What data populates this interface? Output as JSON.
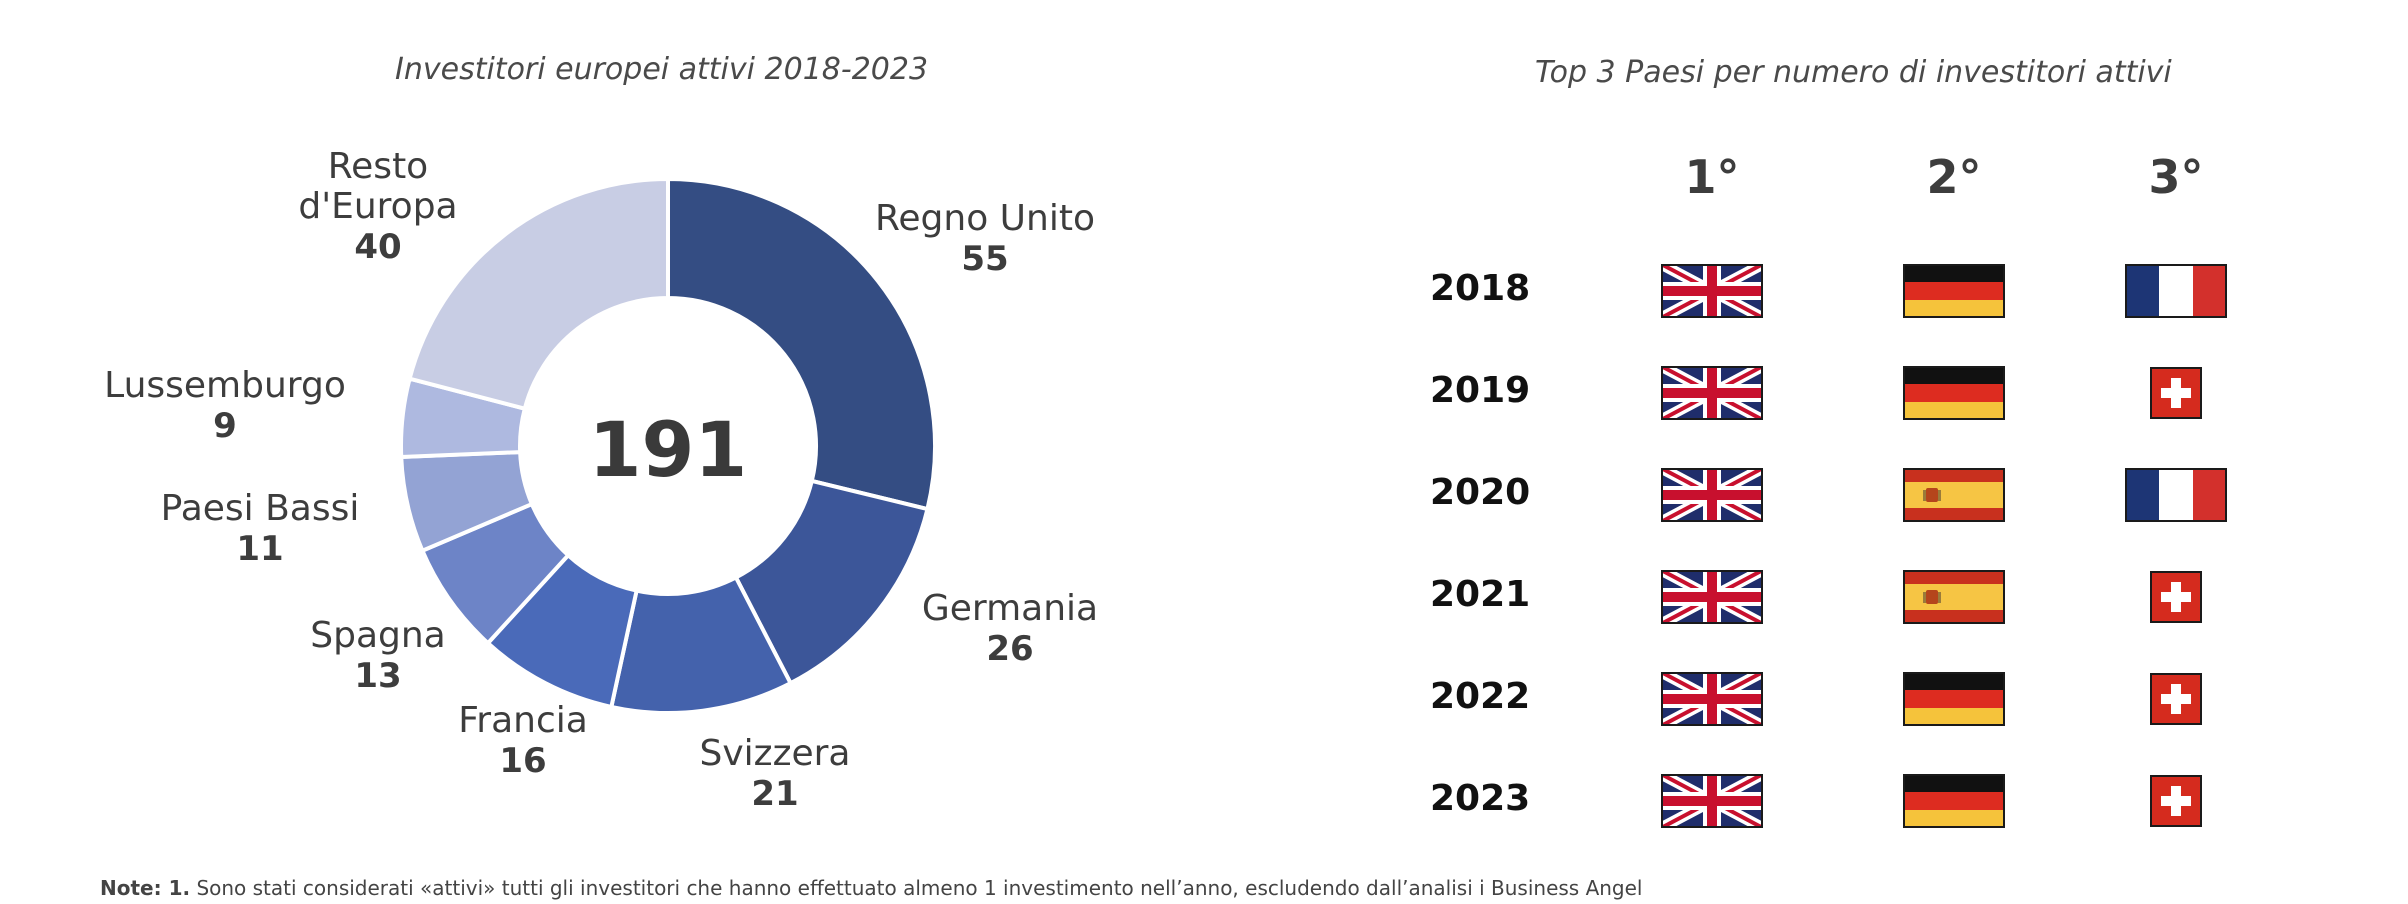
{
  "chart_data": {
    "type": "donut",
    "title": "Investitori europei attivi 2018-2023",
    "total": "191",
    "slices": [
      {
        "label": "Regno Unito",
        "value": 55,
        "color": "#344d83"
      },
      {
        "label": "Germania",
        "value": 26,
        "color": "#3c5699"
      },
      {
        "label": "Svizzera",
        "value": 21,
        "color": "#4462ac"
      },
      {
        "label": "Francia",
        "value": 16,
        "color": "#4a6ab9"
      },
      {
        "label": "Spagna",
        "value": 13,
        "color": "#6d84c7"
      },
      {
        "label": "Paesi Bassi",
        "value": 11,
        "color": "#93a3d4"
      },
      {
        "label": "Lussemburgo",
        "value": 9,
        "color": "#aeb9e0"
      },
      {
        "label": "Resto d'Europa",
        "value": 40,
        "color": "#c8cde4"
      }
    ]
  },
  "top3": {
    "title": "Top 3 Paesi per numero di investitori attivi",
    "headers": [
      "1°",
      "2°",
      "3°"
    ],
    "rows": [
      {
        "year": "2018",
        "flags": [
          "uk-flag",
          "germany-flag",
          "france-flag"
        ]
      },
      {
        "year": "2019",
        "flags": [
          "uk-flag",
          "germany-flag",
          "switzerland-flag"
        ]
      },
      {
        "year": "2020",
        "flags": [
          "uk-flag",
          "spain-flag",
          "france-flag"
        ]
      },
      {
        "year": "2021",
        "flags": [
          "uk-flag",
          "spain-flag",
          "switzerland-flag"
        ]
      },
      {
        "year": "2022",
        "flags": [
          "uk-flag",
          "germany-flag",
          "switzerland-flag"
        ]
      },
      {
        "year": "2023",
        "flags": [
          "uk-flag",
          "germany-flag",
          "switzerland-flag"
        ]
      }
    ]
  },
  "note": {
    "label": "Note: 1.",
    "text": "Sono stati considerati «attivi» tutti gli investitori che hanno effettuato almeno 1 investimento nell’anno, escludendo dall’analisi i Business Angel"
  }
}
